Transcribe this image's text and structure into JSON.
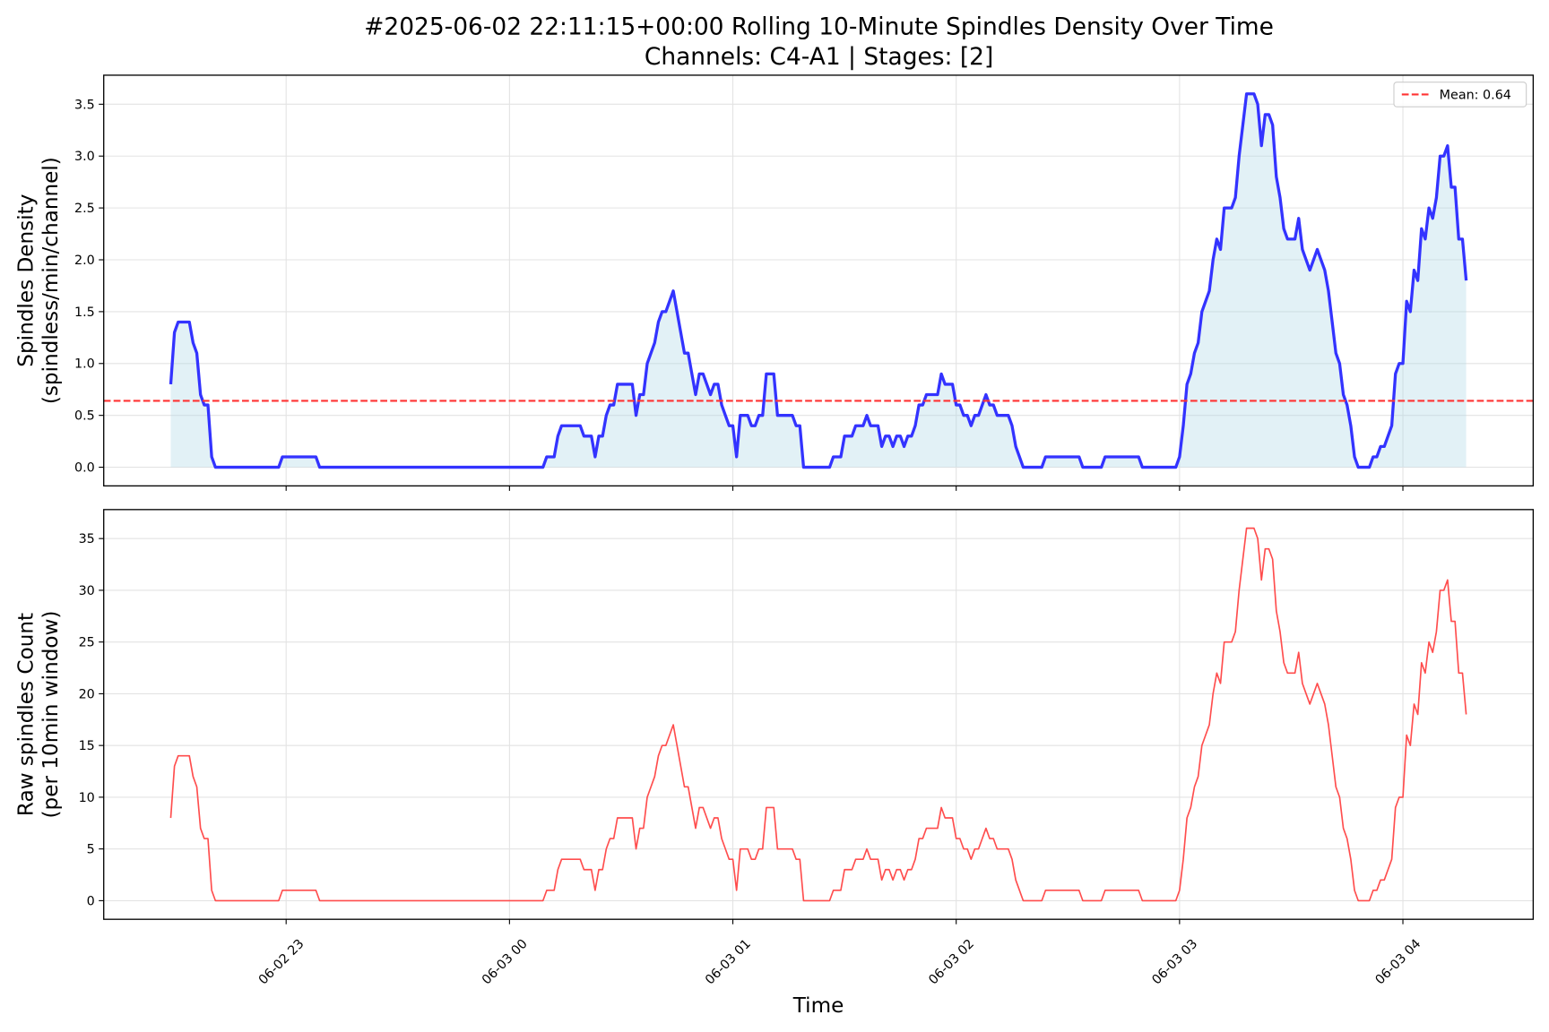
{
  "chart_data": [
    {
      "type": "line",
      "title": "#2025-06-02 22:11:15+00:00 Rolling 10-Minute Spindles Density Over Time",
      "subtitle": "Channels: C4-A1 | Stages: [2]",
      "ylabel": [
        "Spindles Density",
        "(spindless/min/channel)"
      ],
      "color": "#3333ff",
      "fill": "#add8e6",
      "grid": true,
      "legend": "upper right",
      "hline": {
        "value": 0.64,
        "label": "Mean: 0.64",
        "color": "#ff3333"
      },
      "xlim": [
        "06-02 22:11",
        "06-03 04:35"
      ],
      "ylim": [
        -0.18,
        3.78
      ],
      "yticks": [
        {
          "value": 0,
          "label": "0.0"
        },
        0.5,
        {
          "value": 1,
          "label": "1.0"
        },
        1.5,
        {
          "value": 2,
          "label": "2.0"
        },
        2.5,
        {
          "value": 3,
          "label": "3.0"
        },
        3.5
      ],
      "x": [
        "06-02 22:29",
        "06-02 22:30",
        "06-02 22:31",
        "06-02 22:34",
        "06-02 22:35",
        "06-02 22:36",
        "06-02 22:37",
        "06-02 22:38",
        "06-02 22:39",
        "06-02 22:40",
        "06-02 22:41",
        "06-02 22:58",
        "06-02 22:59",
        "06-02 23:08",
        "06-02 23:09",
        "06-03 00:09",
        "06-03 00:10",
        "06-03 00:12",
        "06-03 00:13",
        "06-03 00:14",
        "06-03 00:19",
        "06-03 00:20",
        "06-03 00:22",
        "06-03 00:23",
        "06-03 00:24",
        "06-03 00:25",
        "06-03 00:26",
        "06-03 00:27",
        "06-03 00:28",
        "06-03 00:29",
        "06-03 00:33",
        "06-03 00:34",
        "06-03 00:35",
        "06-03 00:36",
        "06-03 00:37",
        "06-03 00:38",
        "06-03 00:39",
        "06-03 00:40",
        "06-03 00:41",
        "06-03 00:42",
        "06-03 00:43",
        "06-03 00:44",
        "06-03 00:45",
        "06-03 00:46",
        "06-03 00:47",
        "06-03 00:48",
        "06-03 00:49",
        "06-03 00:50",
        "06-03 00:51",
        "06-03 00:52",
        "06-03 00:53",
        "06-03 00:54",
        "06-03 00:55",
        "06-03 00:56",
        "06-03 00:57",
        "06-03 00:58",
        "06-03 00:59",
        "06-03 01:00",
        "06-03 01:01",
        "06-03 01:02",
        "06-03 01:04",
        "06-03 01:05",
        "06-03 01:06",
        "06-03 01:07",
        "06-03 01:08",
        "06-03 01:09",
        "06-03 01:11",
        "06-03 01:12",
        "06-03 01:16",
        "06-03 01:17",
        "06-03 01:18",
        "06-03 01:19",
        "06-03 01:26",
        "06-03 01:27",
        "06-03 01:29",
        "06-03 01:30",
        "06-03 01:32",
        "06-03 01:33",
        "06-03 01:35",
        "06-03 01:36",
        "06-03 01:37",
        "06-03 01:39",
        "06-03 01:40",
        "06-03 01:41",
        "06-03 01:42",
        "06-03 01:43",
        "06-03 01:44",
        "06-03 01:45",
        "06-03 01:46",
        "06-03 01:47",
        "06-03 01:48",
        "06-03 01:49",
        "06-03 01:50",
        "06-03 01:51",
        "06-03 01:52",
        "06-03 01:55",
        "06-03 01:56",
        "06-03 01:57",
        "06-03 01:59",
        "06-03 02:00",
        "06-03 02:01",
        "06-03 02:02",
        "06-03 02:03",
        "06-03 02:04",
        "06-03 02:05",
        "06-03 02:06",
        "06-03 02:07",
        "06-03 02:08",
        "06-03 02:09",
        "06-03 02:10",
        "06-03 02:11",
        "06-03 02:14",
        "06-03 02:15",
        "06-03 02:16",
        "06-03 02:18",
        "06-03 02:23",
        "06-03 02:24",
        "06-03 02:33",
        "06-03 02:34",
        "06-03 02:39",
        "06-03 02:40",
        "06-03 02:49",
        "06-03 02:50",
        "06-03 02:59",
        "06-03 03:00",
        "06-03 03:01",
        "06-03 03:02",
        "06-03 03:03",
        "06-03 03:04",
        "06-03 03:05",
        "06-03 03:06",
        "06-03 03:07",
        "06-03 03:08",
        "06-03 03:09",
        "06-03 03:10",
        "06-03 03:11",
        "06-03 03:12",
        "06-03 03:14",
        "06-03 03:15",
        "06-03 03:16",
        "06-03 03:17",
        "06-03 03:18",
        "06-03 03:20",
        "06-03 03:21",
        "06-03 03:22",
        "06-03 03:23",
        "06-03 03:24",
        "06-03 03:25",
        "06-03 03:26",
        "06-03 03:27",
        "06-03 03:28",
        "06-03 03:29",
        "06-03 03:31",
        "06-03 03:32",
        "06-03 03:33",
        "06-03 03:34",
        "06-03 03:35",
        "06-03 03:36",
        "06-03 03:37",
        "06-03 03:38",
        "06-03 03:39",
        "06-03 03:40",
        "06-03 03:41",
        "06-03 03:42",
        "06-03 03:43",
        "06-03 03:44",
        "06-03 03:45",
        "06-03 03:46",
        "06-03 03:47",
        "06-03 03:48",
        "06-03 03:51",
        "06-03 03:52",
        "06-03 03:53",
        "06-03 03:54",
        "06-03 03:55",
        "06-03 03:56",
        "06-03 03:57",
        "06-03 03:58",
        "06-03 03:59",
        "06-03 04:00",
        "06-03 04:01",
        "06-03 04:02",
        "06-03 04:03",
        "06-03 04:04",
        "06-03 04:05",
        "06-03 04:06",
        "06-03 04:07",
        "06-03 04:08",
        "06-03 04:09",
        "06-03 04:10",
        "06-03 04:11",
        "06-03 04:12",
        "06-03 04:13",
        "06-03 04:14",
        "06-03 04:15",
        "06-03 04:16",
        "06-03 04:17"
      ],
      "values": [
        0.8,
        1.3,
        1.4,
        1.4,
        1.2,
        1.1,
        0.7,
        0.6,
        0.6,
        0.1,
        0,
        0,
        0.1,
        0.1,
        0,
        0,
        0.1,
        0.1,
        0.3,
        0.4,
        0.4,
        0.3,
        0.3,
        0.1,
        0.3,
        0.3,
        0.5,
        0.6,
        0.6,
        0.8,
        0.8,
        0.5,
        0.7,
        0.7,
        1.0,
        1.1,
        1.2,
        1.4,
        1.5,
        1.5,
        1.6,
        1.7,
        1.5,
        1.3,
        1.1,
        1.1,
        0.9,
        0.7,
        0.9,
        0.9,
        0.8,
        0.7,
        0.8,
        0.8,
        0.6,
        0.5,
        0.4,
        0.4,
        0.1,
        0.5,
        0.5,
        0.4,
        0.4,
        0.5,
        0.5,
        0.9,
        0.9,
        0.5,
        0.5,
        0.4,
        0.4,
        0,
        0,
        0.1,
        0.1,
        0.3,
        0.3,
        0.4,
        0.4,
        0.5,
        0.4,
        0.4,
        0.2,
        0.3,
        0.3,
        0.2,
        0.3,
        0.3,
        0.2,
        0.3,
        0.3,
        0.4,
        0.6,
        0.6,
        0.7,
        0.7,
        0.9,
        0.8,
        0.8,
        0.6,
        0.6,
        0.5,
        0.5,
        0.4,
        0.5,
        0.5,
        0.6,
        0.7,
        0.6,
        0.6,
        0.5,
        0.5,
        0.4,
        0.2,
        0,
        0,
        0.1,
        0.1,
        0,
        0,
        0.1,
        0.1,
        0,
        0,
        0.1,
        0.4,
        0.8,
        0.9,
        1.1,
        1.2,
        1.5,
        1.6,
        1.7,
        2.0,
        2.2,
        2.1,
        2.5,
        2.5,
        2.6,
        3.0,
        3.3,
        3.6,
        3.6,
        3.5,
        3.1,
        3.4,
        3.4,
        3.3,
        2.8,
        2.6,
        2.3,
        2.2,
        2.2,
        2.4,
        2.1,
        2.0,
        1.9,
        2.0,
        2.1,
        2.0,
        1.9,
        1.7,
        1.4,
        1.1,
        1.0,
        0.7,
        0.6,
        0.4,
        0.1,
        0,
        0,
        0.1,
        0.1,
        0.2,
        0.2,
        0.3,
        0.4,
        0.9,
        1.0,
        1.0,
        1.6,
        1.5,
        1.9,
        1.8,
        2.3,
        2.2,
        2.5,
        2.4,
        2.6,
        3.0,
        3.0,
        3.1,
        2.7,
        2.7,
        2.2,
        2.2,
        1.8
      ]
    },
    {
      "type": "line",
      "ylabel": [
        "Raw spindles Count",
        "(per 10min window)"
      ],
      "xlabel": "Time",
      "color": "#ff4d4d",
      "grid": true,
      "xlim": [
        "06-02 22:11",
        "06-03 04:35"
      ],
      "xticks": [
        "06-02 23",
        "06-03 00",
        "06-03 01",
        "06-03 02",
        "06-03 03",
        "06-03 04"
      ],
      "ylim": [
        -1.8,
        37.8
      ],
      "yticks": [
        0,
        5,
        10,
        15,
        20,
        25,
        30,
        35
      ],
      "x": [
        "06-02 22:29",
        "06-02 22:30",
        "06-02 22:31",
        "06-02 22:34",
        "06-02 22:35",
        "06-02 22:36",
        "06-02 22:37",
        "06-02 22:38",
        "06-02 22:39",
        "06-02 22:40",
        "06-02 22:41",
        "06-02 22:58",
        "06-02 22:59",
        "06-02 23:08",
        "06-02 23:09",
        "06-03 00:09",
        "06-03 00:10",
        "06-03 00:12",
        "06-03 00:13",
        "06-03 00:14",
        "06-03 00:19",
        "06-03 00:20",
        "06-03 00:22",
        "06-03 00:23",
        "06-03 00:24",
        "06-03 00:25",
        "06-03 00:26",
        "06-03 00:27",
        "06-03 00:28",
        "06-03 00:29",
        "06-03 00:33",
        "06-03 00:34",
        "06-03 00:35",
        "06-03 00:36",
        "06-03 00:37",
        "06-03 00:38",
        "06-03 00:39",
        "06-03 00:40",
        "06-03 00:41",
        "06-03 00:42",
        "06-03 00:43",
        "06-03 00:44",
        "06-03 00:45",
        "06-03 00:46",
        "06-03 00:47",
        "06-03 00:48",
        "06-03 00:49",
        "06-03 00:50",
        "06-03 00:51",
        "06-03 00:52",
        "06-03 00:53",
        "06-03 00:54",
        "06-03 00:55",
        "06-03 00:56",
        "06-03 00:57",
        "06-03 00:58",
        "06-03 00:59",
        "06-03 01:00",
        "06-03 01:01",
        "06-03 01:02",
        "06-03 01:04",
        "06-03 01:05",
        "06-03 01:06",
        "06-03 01:07",
        "06-03 01:08",
        "06-03 01:09",
        "06-03 01:11",
        "06-03 01:12",
        "06-03 01:16",
        "06-03 01:17",
        "06-03 01:18",
        "06-03 01:19",
        "06-03 01:26",
        "06-03 01:27",
        "06-03 01:29",
        "06-03 01:30",
        "06-03 01:32",
        "06-03 01:33",
        "06-03 01:35",
        "06-03 01:36",
        "06-03 01:37",
        "06-03 01:39",
        "06-03 01:40",
        "06-03 01:41",
        "06-03 01:42",
        "06-03 01:43",
        "06-03 01:44",
        "06-03 01:45",
        "06-03 01:46",
        "06-03 01:47",
        "06-03 01:48",
        "06-03 01:49",
        "06-03 01:50",
        "06-03 01:51",
        "06-03 01:52",
        "06-03 01:55",
        "06-03 01:56",
        "06-03 01:57",
        "06-03 01:59",
        "06-03 02:00",
        "06-03 02:01",
        "06-03 02:02",
        "06-03 02:03",
        "06-03 02:04",
        "06-03 02:05",
        "06-03 02:06",
        "06-03 02:07",
        "06-03 02:08",
        "06-03 02:09",
        "06-03 02:10",
        "06-03 02:11",
        "06-03 02:14",
        "06-03 02:15",
        "06-03 02:16",
        "06-03 02:18",
        "06-03 02:23",
        "06-03 02:24",
        "06-03 02:33",
        "06-03 02:34",
        "06-03 02:39",
        "06-03 02:40",
        "06-03 02:49",
        "06-03 02:50",
        "06-03 02:59",
        "06-03 03:00",
        "06-03 03:01",
        "06-03 03:02",
        "06-03 03:03",
        "06-03 03:04",
        "06-03 03:05",
        "06-03 03:06",
        "06-03 03:07",
        "06-03 03:08",
        "06-03 03:09",
        "06-03 03:10",
        "06-03 03:11",
        "06-03 03:12",
        "06-03 03:14",
        "06-03 03:15",
        "06-03 03:16",
        "06-03 03:17",
        "06-03 03:18",
        "06-03 03:20",
        "06-03 03:21",
        "06-03 03:22",
        "06-03 03:23",
        "06-03 03:24",
        "06-03 03:25",
        "06-03 03:26",
        "06-03 03:27",
        "06-03 03:28",
        "06-03 03:29",
        "06-03 03:31",
        "06-03 03:32",
        "06-03 03:33",
        "06-03 03:34",
        "06-03 03:35",
        "06-03 03:36",
        "06-03 03:37",
        "06-03 03:38",
        "06-03 03:39",
        "06-03 03:40",
        "06-03 03:41",
        "06-03 03:42",
        "06-03 03:43",
        "06-03 03:44",
        "06-03 03:45",
        "06-03 03:46",
        "06-03 03:47",
        "06-03 03:48",
        "06-03 03:51",
        "06-03 03:52",
        "06-03 03:53",
        "06-03 03:54",
        "06-03 03:55",
        "06-03 03:56",
        "06-03 03:57",
        "06-03 03:58",
        "06-03 03:59",
        "06-03 04:00",
        "06-03 04:01",
        "06-03 04:02",
        "06-03 04:03",
        "06-03 04:04",
        "06-03 04:05",
        "06-03 04:06",
        "06-03 04:07",
        "06-03 04:08",
        "06-03 04:09",
        "06-03 04:10",
        "06-03 04:11",
        "06-03 04:12",
        "06-03 04:13",
        "06-03 04:14",
        "06-03 04:15",
        "06-03 04:16",
        "06-03 04:17"
      ],
      "values": [
        8,
        13,
        14,
        14,
        12,
        11,
        7,
        6,
        6,
        1,
        0,
        0,
        1,
        1,
        0,
        0,
        1,
        1,
        3,
        4,
        4,
        3,
        3,
        1,
        3,
        3,
        5,
        6,
        6,
        8,
        8,
        5,
        7,
        7,
        10,
        11,
        12,
        14,
        15,
        15,
        16,
        17,
        15,
        13,
        11,
        11,
        9,
        7,
        9,
        9,
        8,
        7,
        8,
        8,
        6,
        5,
        4,
        4,
        1,
        5,
        5,
        4,
        4,
        5,
        5,
        9,
        9,
        5,
        5,
        4,
        4,
        0,
        0,
        1,
        1,
        3,
        3,
        4,
        4,
        5,
        4,
        4,
        2,
        3,
        3,
        2,
        3,
        3,
        2,
        3,
        3,
        4,
        6,
        6,
        7,
        7,
        9,
        8,
        8,
        6,
        6,
        5,
        5,
        4,
        5,
        5,
        6,
        7,
        6,
        6,
        5,
        5,
        4,
        2,
        0,
        0,
        1,
        1,
        0,
        0,
        1,
        1,
        0,
        0,
        1,
        4,
        8,
        9,
        11,
        12,
        15,
        16,
        17,
        20,
        22,
        21,
        25,
        25,
        26,
        30,
        33,
        36,
        36,
        35,
        31,
        34,
        34,
        33,
        28,
        26,
        23,
        22,
        22,
        24,
        21,
        20,
        19,
        20,
        21,
        20,
        19,
        17,
        14,
        11,
        10,
        7,
        6,
        4,
        1,
        0,
        0,
        1,
        1,
        2,
        2,
        3,
        4,
        9,
        10,
        10,
        16,
        15,
        19,
        18,
        23,
        22,
        25,
        24,
        26,
        30,
        30,
        31,
        27,
        27,
        22,
        22,
        18
      ]
    }
  ]
}
